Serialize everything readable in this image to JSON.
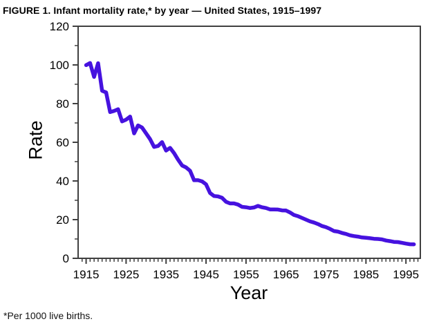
{
  "page": {
    "title": "FIGURE 1. Infant mortality rate,* by year — United States, 1915–1997",
    "footnote": "*Per 1000 live births."
  },
  "chart_data": {
    "type": "line",
    "title": "FIGURE 1. Infant mortality rate,* by year — United States, 1915–1997",
    "xlabel": "Year",
    "ylabel": "Rate",
    "xlim": [
      1913,
      1998.6
    ],
    "ylim": [
      0,
      120
    ],
    "x_major_ticks": [
      1915,
      1925,
      1935,
      1945,
      1955,
      1965,
      1975,
      1985,
      1995
    ],
    "x_minor_tick_step": 1,
    "y_major_ticks": [
      0,
      20,
      40,
      60,
      80,
      100,
      120
    ],
    "y_minor_ticks": [
      10,
      30,
      50,
      70,
      90,
      110
    ],
    "grid": false,
    "legend": false,
    "line_color": "#4612DF",
    "axis_color": "#3f3f3f",
    "series": [
      {
        "name": "Infant mortality rate per 1000 live births",
        "x": [
          1915,
          1916,
          1917,
          1918,
          1919,
          1920,
          1921,
          1922,
          1923,
          1924,
          1925,
          1926,
          1927,
          1928,
          1929,
          1930,
          1931,
          1932,
          1933,
          1934,
          1935,
          1936,
          1937,
          1938,
          1939,
          1940,
          1941,
          1942,
          1943,
          1944,
          1945,
          1946,
          1947,
          1948,
          1949,
          1950,
          1951,
          1952,
          1953,
          1954,
          1955,
          1956,
          1957,
          1958,
          1959,
          1960,
          1961,
          1962,
          1963,
          1964,
          1965,
          1966,
          1967,
          1968,
          1969,
          1970,
          1971,
          1972,
          1973,
          1974,
          1975,
          1976,
          1977,
          1978,
          1979,
          1980,
          1981,
          1982,
          1983,
          1984,
          1985,
          1986,
          1987,
          1988,
          1989,
          1990,
          1991,
          1992,
          1993,
          1994,
          1995,
          1996,
          1997
        ],
        "values": [
          99.9,
          101.0,
          93.8,
          100.9,
          86.6,
          85.8,
          75.6,
          76.2,
          77.1,
          70.8,
          71.7,
          73.3,
          64.6,
          68.7,
          67.6,
          64.6,
          61.6,
          57.6,
          58.1,
          60.1,
          55.7,
          57.1,
          54.4,
          51.0,
          48.0,
          47.0,
          45.3,
          40.4,
          40.4,
          39.8,
          38.3,
          33.8,
          32.2,
          32.0,
          31.3,
          29.2,
          28.4,
          28.4,
          27.8,
          26.6,
          26.4,
          26.0,
          26.3,
          27.1,
          26.4,
          26.0,
          25.3,
          25.3,
          25.2,
          24.8,
          24.7,
          23.7,
          22.4,
          21.8,
          20.9,
          20.0,
          19.1,
          18.5,
          17.7,
          16.7,
          16.1,
          15.2,
          14.1,
          13.8,
          13.1,
          12.6,
          11.9,
          11.5,
          11.2,
          10.8,
          10.6,
          10.4,
          10.1,
          10.0,
          9.8,
          9.2,
          8.9,
          8.5,
          8.4,
          8.0,
          7.6,
          7.3,
          7.2
        ]
      }
    ]
  }
}
